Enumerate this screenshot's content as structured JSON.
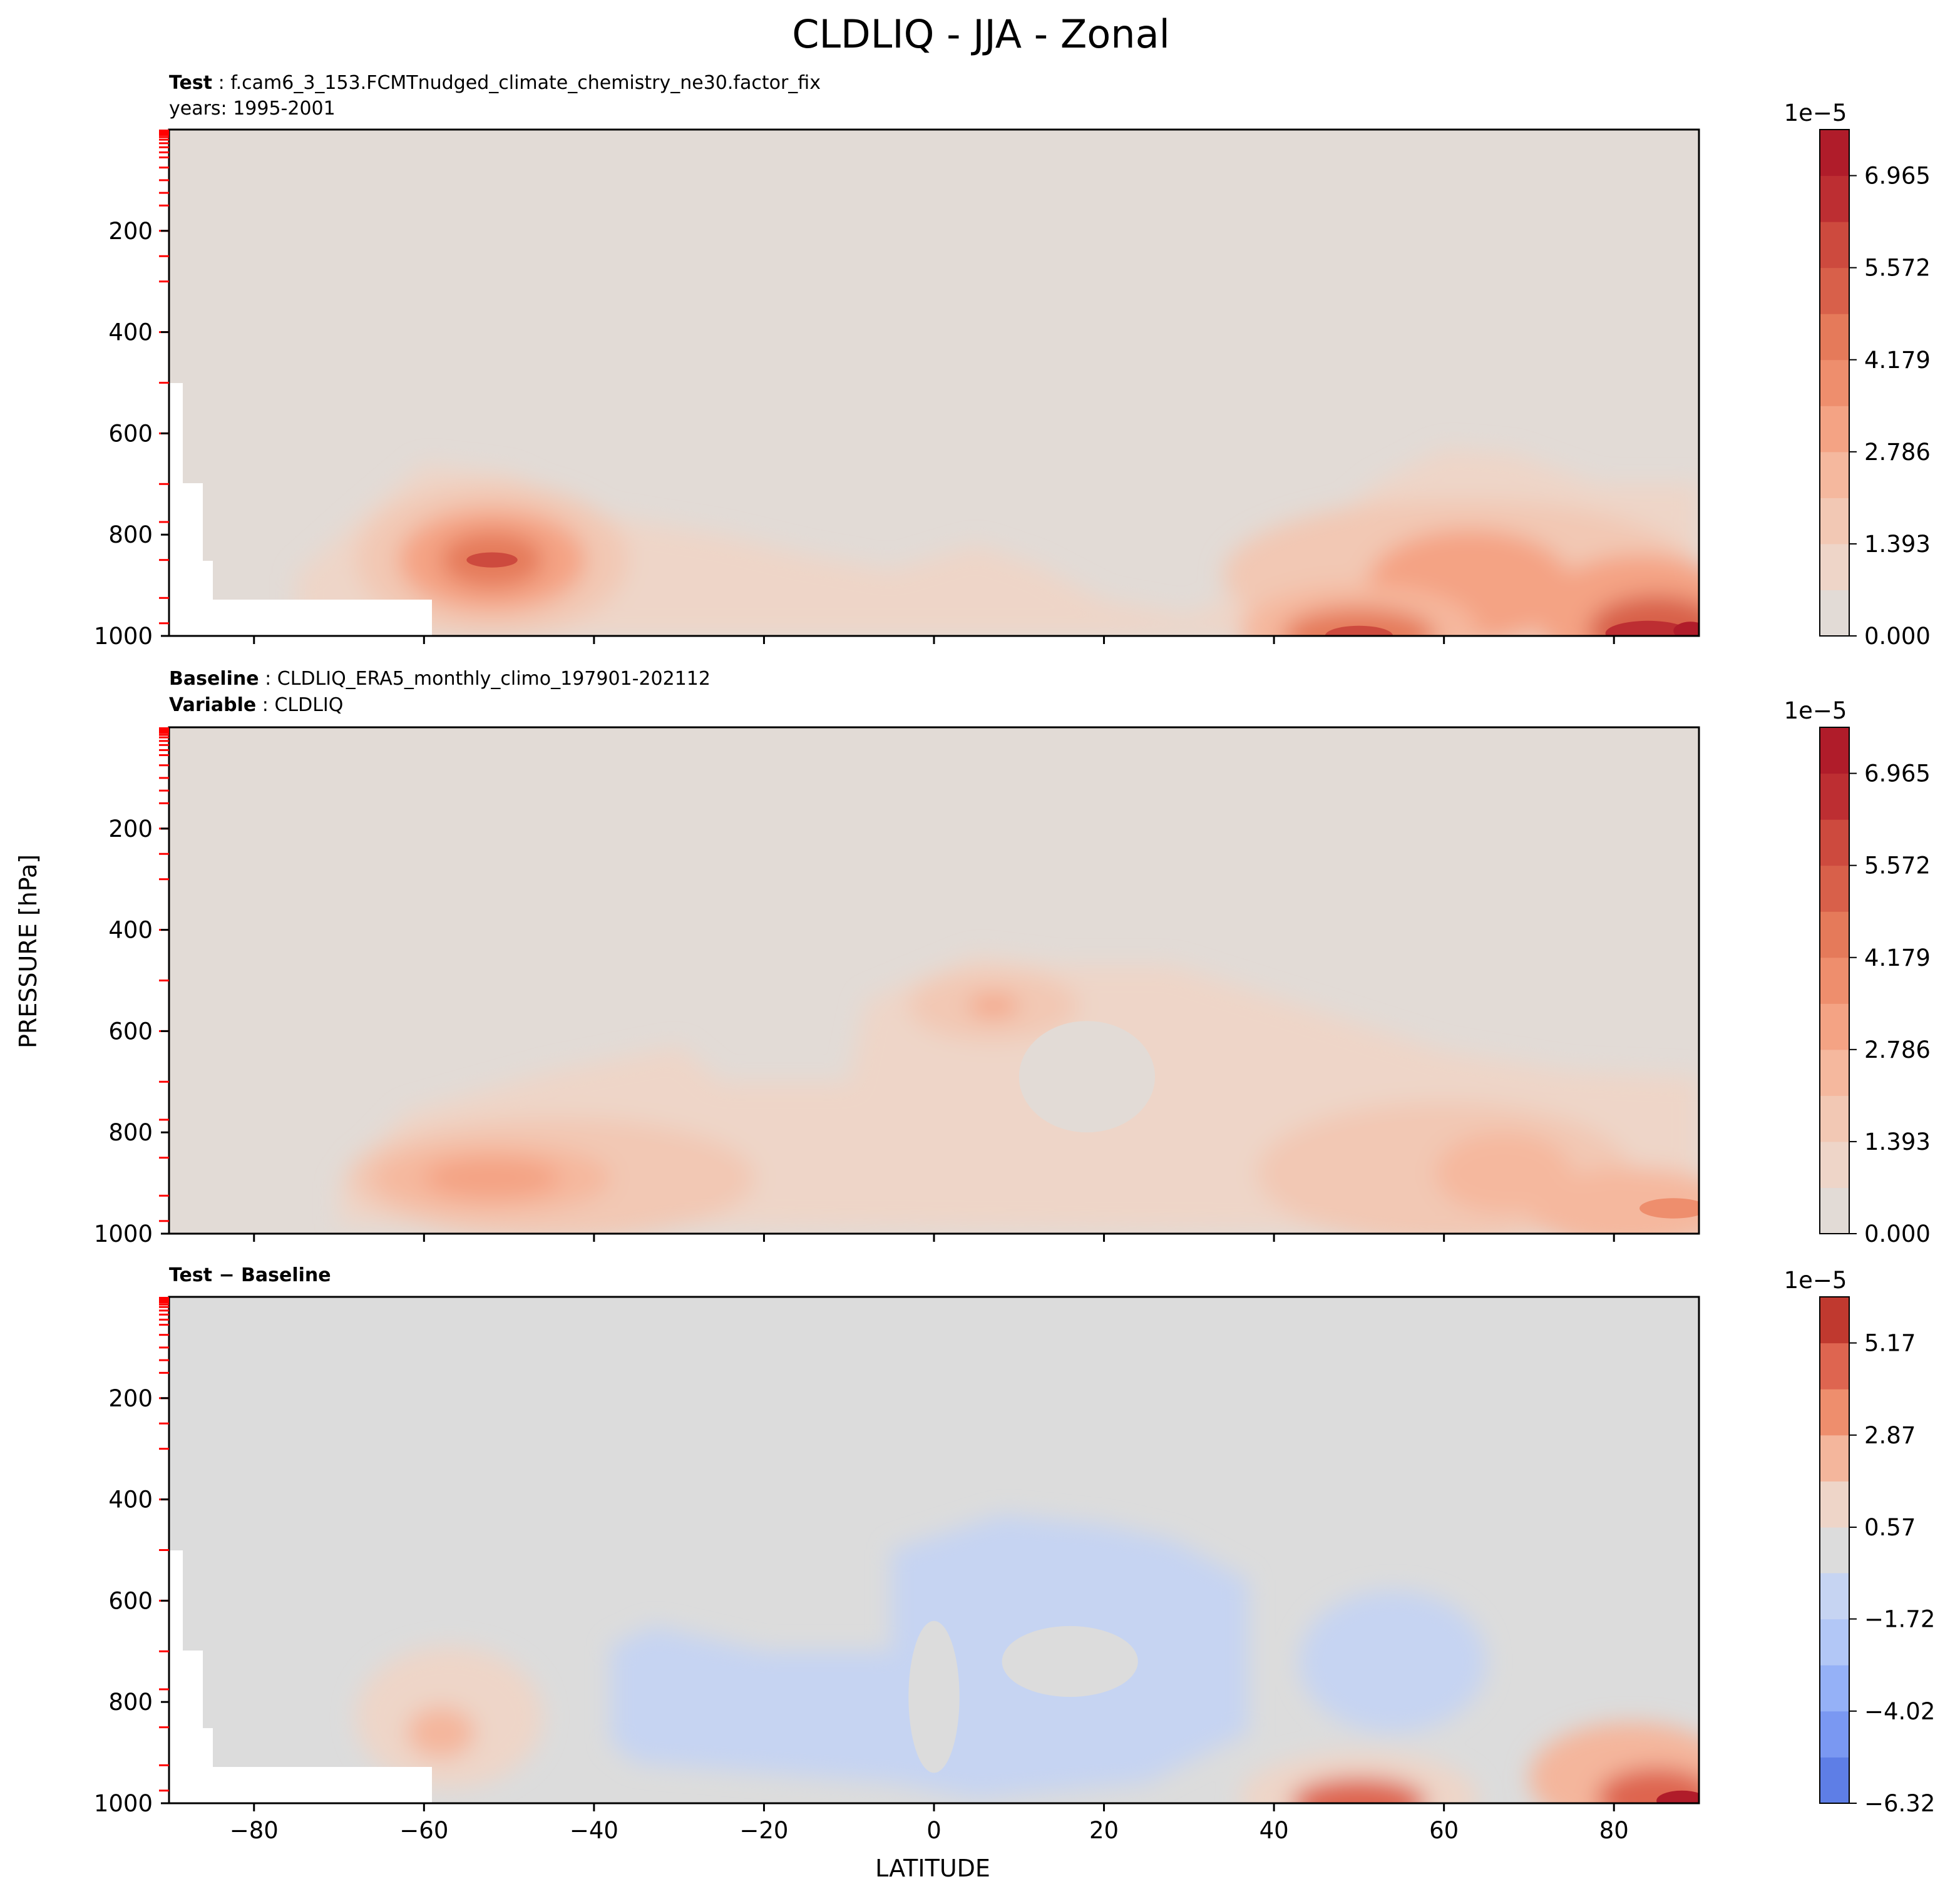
{
  "figure": {
    "title": "CLDLIQ - JJA - Zonal",
    "xlabel": "LATITUDE",
    "ylabel": "PRESSURE [hPa]"
  },
  "panels": [
    {
      "id": "test",
      "line1_key": "Test",
      "line1_text": ": f.cam6_3_153.FCMTnudged_climate_chemistry_ne30.factor_fix",
      "line2_key": "",
      "line2_text": "years: 1995-2001",
      "colorbar_exponent": "1e−5",
      "colorbar_ticks": [
        "0.000",
        "1.393",
        "2.786",
        "4.179",
        "5.572",
        "6.965"
      ]
    },
    {
      "id": "baseline",
      "line1_key": "Baseline",
      "line1_text": ": CLDLIQ_ERA5_monthly_climo_197901-202112",
      "line2_key": "Variable",
      "line2_text": ": CLDLIQ",
      "colorbar_exponent": "1e−5",
      "colorbar_ticks": [
        "0.000",
        "1.393",
        "2.786",
        "4.179",
        "5.572",
        "6.965"
      ]
    },
    {
      "id": "diff",
      "line1_key": "Test − Baseline",
      "line1_text": "",
      "line2_key": "",
      "line2_text": "",
      "colorbar_exponent": "1e−5",
      "colorbar_ticks": [
        "−6.32",
        "−4.02",
        "−1.72",
        "0.57",
        "2.87",
        "5.17"
      ]
    }
  ],
  "colors": {
    "background_field": "#e2dbd6",
    "diff_background": "#dcdcdc",
    "seq_levels": [
      "#e2dbd6",
      "#eed5c8",
      "#f2c8b4",
      "#f5b89e",
      "#f4a384",
      "#ee8e6d",
      "#e57a5a",
      "#d8604a",
      "#cd4a3e",
      "#bd2e32",
      "#b01c2a"
    ],
    "div_levels": [
      "#4a62d2",
      "#5e7ee6",
      "#7a98f2",
      "#95b1f7",
      "#b2c7f6",
      "#c6d4f2",
      "#dcdcdc",
      "#eed5c8",
      "#f4b69c",
      "#ee8e6d",
      "#de6550",
      "#c0392f",
      "#b01c2a"
    ],
    "tick_marker": "#ff0000"
  },
  "chart_data": [
    {
      "type": "contour",
      "panel": "test",
      "title": "",
      "x_axis": {
        "label": "",
        "range": [
          -90,
          90
        ],
        "ticks": [
          -80,
          -60,
          -40,
          -20,
          0,
          20,
          40,
          60,
          80
        ]
      },
      "y_axis": {
        "label": "",
        "range": [
          1000,
          0
        ],
        "ticks": [
          200,
          400,
          600,
          800,
          1000
        ],
        "inverted": true
      },
      "levels": [
        0,
        0.696,
        1.393,
        2.089,
        2.786,
        3.482,
        4.179,
        4.875,
        5.572,
        6.268,
        6.965,
        7.662
      ],
      "units_scale": "1e-5",
      "masked_topography": true,
      "features": [
        {
          "lat": -52,
          "pressure": 850,
          "max_value": 5.0
        },
        {
          "lat": 5,
          "pressure": 830,
          "max_value": 1.6
        },
        {
          "lat": 50,
          "pressure": 1000,
          "max_value": 6.3
        },
        {
          "lat": 63,
          "pressure": 900,
          "max_value": 4.2
        },
        {
          "lat": 85,
          "pressure": 990,
          "max_value": 7.5
        }
      ]
    },
    {
      "type": "contour",
      "panel": "baseline",
      "title": "",
      "x_axis": {
        "label": "",
        "range": [
          -90,
          90
        ],
        "ticks": [
          -80,
          -60,
          -40,
          -20,
          0,
          20,
          40,
          60,
          80
        ]
      },
      "y_axis": {
        "label": "",
        "range": [
          1000,
          0
        ],
        "ticks": [
          200,
          400,
          600,
          800,
          1000
        ],
        "inverted": true
      },
      "levels": [
        0,
        0.696,
        1.393,
        2.089,
        2.786,
        3.482,
        4.179,
        4.875,
        5.572,
        6.268,
        6.965,
        7.662
      ],
      "units_scale": "1e-5",
      "masked_topography": false,
      "features": [
        {
          "lat": -52,
          "pressure": 890,
          "max_value": 3.6
        },
        {
          "lat": 7,
          "pressure": 550,
          "max_value": 3.1
        },
        {
          "lat": 65,
          "pressure": 880,
          "max_value": 2.9
        },
        {
          "lat": 85,
          "pressure": 960,
          "max_value": 4.8
        }
      ]
    },
    {
      "type": "contour",
      "panel": "diff",
      "title": "",
      "x_axis": {
        "label": "LATITUDE",
        "range": [
          -90,
          90
        ],
        "ticks": [
          -80,
          -60,
          -40,
          -20,
          0,
          20,
          40,
          60,
          80
        ]
      },
      "y_axis": {
        "label": "",
        "range": [
          1000,
          0
        ],
        "ticks": [
          200,
          400,
          600,
          800,
          1000
        ],
        "inverted": true
      },
      "levels": [
        -6.32,
        -5.17,
        -4.02,
        -2.87,
        -1.72,
        -0.57,
        0.57,
        1.72,
        2.87,
        4.02,
        5.17,
        6.32
      ],
      "units_scale": "1e-5",
      "masked_topography": true,
      "features": [
        {
          "lat": -57,
          "pressure": 830,
          "max_value": 2.3
        },
        {
          "lat": 10,
          "pressure": 750,
          "min_value": -1.3
        },
        {
          "lat": 55,
          "pressure": 700,
          "min_value": -1.2
        },
        {
          "lat": 50,
          "pressure": 1000,
          "max_value": 6.0
        },
        {
          "lat": 85,
          "pressure": 990,
          "max_value": 6.2
        }
      ]
    }
  ]
}
